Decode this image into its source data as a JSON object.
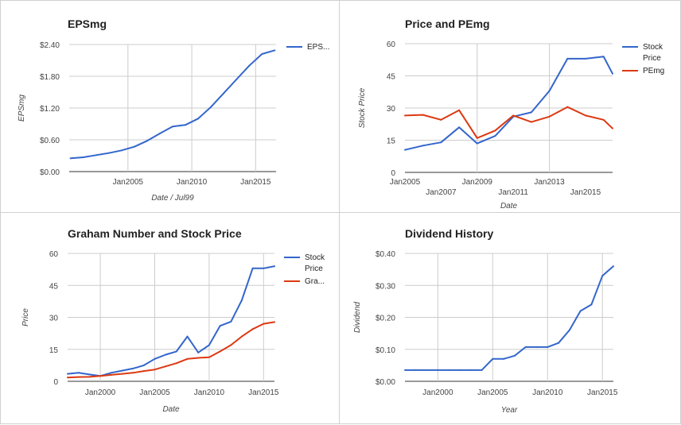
{
  "chart_data": [
    {
      "type": "line",
      "title": "EPSmg",
      "xlabel": "Date / Jul99",
      "ylabel": "EPSmg",
      "xlim": [
        2000.4,
        2016.6
      ],
      "ylim": [
        0,
        2.4
      ],
      "y_ticks": [
        {
          "value": 0,
          "label": "$0.00"
        },
        {
          "value": 0.6,
          "label": "$0.60"
        },
        {
          "value": 1.2,
          "label": "$1.20"
        },
        {
          "value": 1.8,
          "label": "$1.80"
        },
        {
          "value": 2.4,
          "label": "$2.40"
        }
      ],
      "x_ticks": [
        {
          "value": 2005,
          "label": "Jan2005",
          "row": 0
        },
        {
          "value": 2010,
          "label": "Jan2010",
          "row": 0
        },
        {
          "value": 2015,
          "label": "Jan2015",
          "row": 0
        }
      ],
      "x_gridlines": [
        2005,
        2010,
        2015
      ],
      "legend_position": "right",
      "series": [
        {
          "name": "EPS...",
          "color": "#3366cc",
          "x": [
            2000.5,
            2001.5,
            2002.5,
            2003.5,
            2004.5,
            2005.5,
            2006.5,
            2007.5,
            2008.5,
            2009.5,
            2010.5,
            2011.5,
            2012.5,
            2013.5,
            2014.5,
            2015.5,
            2016.5
          ],
          "values": [
            0.25,
            0.27,
            0.31,
            0.35,
            0.4,
            0.47,
            0.58,
            0.72,
            0.85,
            0.88,
            1.0,
            1.22,
            1.48,
            1.74,
            2.0,
            2.22,
            2.29
          ]
        }
      ]
    },
    {
      "type": "line",
      "title": "Price and PEmg",
      "xlabel": "Date",
      "ylabel": "Stock Price",
      "xlim": [
        2005,
        2016.5
      ],
      "ylim": [
        0,
        60
      ],
      "y_ticks": [
        {
          "value": 0,
          "label": "0"
        },
        {
          "value": 15,
          "label": "15"
        },
        {
          "value": 30,
          "label": "30"
        },
        {
          "value": 45,
          "label": "45"
        },
        {
          "value": 60,
          "label": "60"
        }
      ],
      "x_ticks": [
        {
          "value": 2005,
          "label": "Jan2005",
          "row": 0
        },
        {
          "value": 2007,
          "label": "Jan2007",
          "row": 1
        },
        {
          "value": 2009,
          "label": "Jan2009",
          "row": 0
        },
        {
          "value": 2011,
          "label": "Jan2011",
          "row": 1
        },
        {
          "value": 2013,
          "label": "Jan2013",
          "row": 0
        },
        {
          "value": 2015,
          "label": "Jan2015",
          "row": 1
        }
      ],
      "x_gridlines": [
        2009,
        2013
      ],
      "legend_position": "right",
      "series": [
        {
          "name": "Stock Price",
          "color": "#3366cc",
          "x": [
            2005,
            2006,
            2007,
            2008,
            2009,
            2010,
            2011,
            2012,
            2013,
            2014,
            2015,
            2016,
            2016.5
          ],
          "values": [
            10.5,
            12.5,
            14,
            21,
            13.5,
            17,
            26,
            28,
            38,
            53,
            53,
            54,
            46
          ]
        },
        {
          "name": "PEmg",
          "color": "#dc3912",
          "x": [
            2005,
            2006,
            2007,
            2008,
            2009,
            2010,
            2011,
            2012,
            2013,
            2014,
            2015,
            2016,
            2016.5
          ],
          "values": [
            26.5,
            26.8,
            24.5,
            29,
            16,
            19.5,
            26.5,
            23.5,
            26,
            30.5,
            26.5,
            24.5,
            20.5
          ]
        }
      ]
    },
    {
      "type": "line",
      "title": "Graham Number and Stock Price",
      "xlabel": "Date",
      "ylabel": "Price",
      "xlim": [
        1997,
        2016
      ],
      "ylim": [
        0,
        60
      ],
      "y_ticks": [
        {
          "value": 0,
          "label": "0"
        },
        {
          "value": 15,
          "label": "15"
        },
        {
          "value": 30,
          "label": "30"
        },
        {
          "value": 45,
          "label": "45"
        },
        {
          "value": 60,
          "label": "60"
        }
      ],
      "x_ticks": [
        {
          "value": 2000,
          "label": "Jan2000",
          "row": 0
        },
        {
          "value": 2005,
          "label": "Jan2005",
          "row": 0
        },
        {
          "value": 2010,
          "label": "Jan2010",
          "row": 0
        },
        {
          "value": 2015,
          "label": "Jan2015",
          "row": 0
        }
      ],
      "x_gridlines": [
        2000,
        2005,
        2010,
        2015
      ],
      "legend_position": "right",
      "series": [
        {
          "name": "Stock Price",
          "color": "#3366cc",
          "x": [
            1997,
            1998,
            1999,
            2000,
            2001,
            2002,
            2003,
            2004,
            2005,
            2006,
            2007,
            2008,
            2009,
            2010,
            2011,
            2012,
            2013,
            2014,
            2015,
            2016
          ],
          "values": [
            3.5,
            4,
            3.2,
            2.5,
            4,
            5,
            6,
            7.5,
            10.5,
            12.5,
            14,
            21,
            13.5,
            17,
            26,
            28,
            38,
            53,
            53,
            54
          ]
        },
        {
          "name": "Gra...",
          "color": "#dc3912",
          "x": [
            1997,
            1998,
            1999,
            2000,
            2001,
            2002,
            2003,
            2004,
            2005,
            2006,
            2007,
            2008,
            2009,
            2010,
            2011,
            2012,
            2013,
            2014,
            2015,
            2016
          ],
          "values": [
            1.8,
            2,
            2.1,
            2.5,
            3,
            3.5,
            4,
            4.8,
            5.5,
            7,
            8.5,
            10.5,
            11,
            11.3,
            14,
            17,
            21,
            24.5,
            27,
            27.8
          ]
        }
      ]
    },
    {
      "type": "line",
      "title": "Dividend History",
      "xlabel": "Year",
      "ylabel": "Dividend",
      "xlim": [
        1997,
        2016
      ],
      "ylim": [
        0,
        0.4
      ],
      "y_ticks": [
        {
          "value": 0,
          "label": "$0.00"
        },
        {
          "value": 0.1,
          "label": "$0.10"
        },
        {
          "value": 0.2,
          "label": "$0.20"
        },
        {
          "value": 0.3,
          "label": "$0.30"
        },
        {
          "value": 0.4,
          "label": "$0.40"
        }
      ],
      "x_ticks": [
        {
          "value": 2000,
          "label": "Jan2000",
          "row": 0
        },
        {
          "value": 2005,
          "label": "Jan2005",
          "row": 0
        },
        {
          "value": 2010,
          "label": "Jan2010",
          "row": 0
        },
        {
          "value": 2015,
          "label": "Jan2015",
          "row": 0
        }
      ],
      "x_gridlines": [
        2000,
        2005,
        2010,
        2015
      ],
      "legend_position": "none",
      "series": [
        {
          "name": "",
          "color": "#3366cc",
          "x": [
            1997,
            1998,
            1999,
            2000,
            2001,
            2002,
            2003,
            2004,
            2005,
            2006,
            2007,
            2008,
            2009,
            2010,
            2011,
            2012,
            2013,
            2014,
            2015,
            2016
          ],
          "values": [
            0.035,
            0.035,
            0.035,
            0.035,
            0.035,
            0.035,
            0.035,
            0.035,
            0.07,
            0.07,
            0.08,
            0.107,
            0.107,
            0.107,
            0.12,
            0.16,
            0.22,
            0.24,
            0.33,
            0.36
          ]
        }
      ]
    }
  ]
}
